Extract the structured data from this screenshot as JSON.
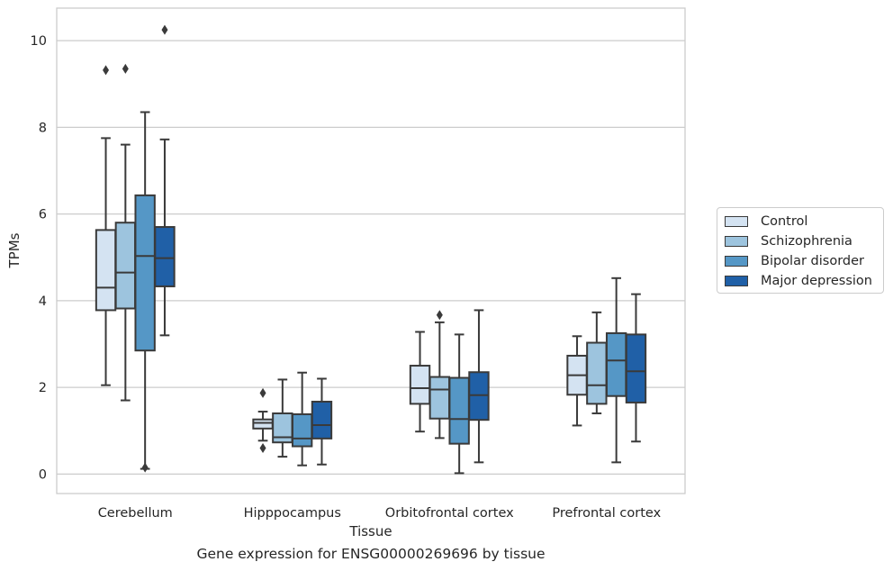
{
  "chart_data": {
    "type": "box",
    "categories": [
      "Cerebellum",
      "Hipppocampus",
      "Orbitofrontal cortex",
      "Prefrontal cortex"
    ],
    "xlabel": "Tissue",
    "ylabel": "TPMs",
    "ylim": [
      -0.45,
      10.75
    ],
    "yticks": [
      0,
      2,
      4,
      6,
      8,
      10
    ],
    "grid": "horizontal",
    "legend_position": "right",
    "caption": "Gene expression for ENSG00000269696 by tissue",
    "series": [
      {
        "name": "Control",
        "color": "#d4e3f2",
        "boxes": [
          {
            "whisker_low": 2.05,
            "q1": 3.78,
            "median": 4.3,
            "q3": 5.63,
            "whisker_high": 7.75,
            "outliers": [
              9.32
            ]
          },
          {
            "whisker_low": 0.77,
            "q1": 1.05,
            "median": 1.18,
            "q3": 1.26,
            "whisker_high": 1.44,
            "outliers": [
              1.87,
              0.6
            ]
          },
          {
            "whisker_low": 0.98,
            "q1": 1.62,
            "median": 1.98,
            "q3": 2.5,
            "whisker_high": 3.28,
            "outliers": []
          },
          {
            "whisker_low": 1.12,
            "q1": 1.83,
            "median": 2.28,
            "q3": 2.73,
            "whisker_high": 3.18,
            "outliers": []
          }
        ]
      },
      {
        "name": "Schizophrenia",
        "color": "#9dc4de",
        "boxes": [
          {
            "whisker_low": 1.7,
            "q1": 3.82,
            "median": 4.65,
            "q3": 5.8,
            "whisker_high": 7.6,
            "outliers": [
              9.35
            ]
          },
          {
            "whisker_low": 0.4,
            "q1": 0.73,
            "median": 0.85,
            "q3": 1.4,
            "whisker_high": 2.18,
            "outliers": []
          },
          {
            "whisker_low": 0.83,
            "q1": 1.28,
            "median": 1.95,
            "q3": 2.24,
            "whisker_high": 3.5,
            "outliers": [
              3.67
            ]
          },
          {
            "whisker_low": 1.4,
            "q1": 1.62,
            "median": 2.05,
            "q3": 3.03,
            "whisker_high": 3.73,
            "outliers": []
          }
        ]
      },
      {
        "name": "Bipolar disorder",
        "color": "#5597c6",
        "boxes": [
          {
            "whisker_low": 0.12,
            "q1": 2.85,
            "median": 5.03,
            "q3": 6.43,
            "whisker_high": 8.35,
            "outliers": [
              0.15
            ]
          },
          {
            "whisker_low": 0.2,
            "q1": 0.64,
            "median": 0.82,
            "q3": 1.38,
            "whisker_high": 2.34,
            "outliers": []
          },
          {
            "whisker_low": 0.02,
            "q1": 0.7,
            "median": 1.27,
            "q3": 2.22,
            "whisker_high": 3.22,
            "outliers": []
          },
          {
            "whisker_low": 0.27,
            "q1": 1.8,
            "median": 2.62,
            "q3": 3.25,
            "whisker_high": 4.52,
            "outliers": []
          }
        ]
      },
      {
        "name": "Major depression",
        "color": "#2060a7",
        "boxes": [
          {
            "whisker_low": 3.2,
            "q1": 4.33,
            "median": 4.98,
            "q3": 5.7,
            "whisker_high": 7.72,
            "outliers": [
              10.25
            ]
          },
          {
            "whisker_low": 0.22,
            "q1": 0.82,
            "median": 1.13,
            "q3": 1.67,
            "whisker_high": 2.2,
            "outliers": []
          },
          {
            "whisker_low": 0.27,
            "q1": 1.25,
            "median": 1.82,
            "q3": 2.35,
            "whisker_high": 3.78,
            "outliers": []
          },
          {
            "whisker_low": 0.75,
            "q1": 1.65,
            "median": 2.37,
            "q3": 3.22,
            "whisker_high": 4.15,
            "outliers": []
          }
        ]
      }
    ]
  }
}
